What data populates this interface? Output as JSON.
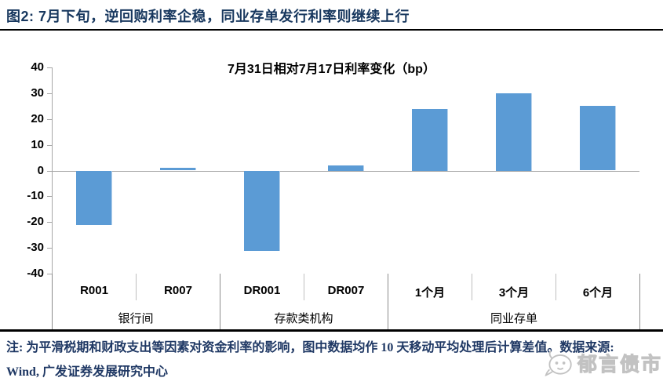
{
  "header": {
    "title": "图2: 7月下旬，逆回购利率企稳，同业存单发行利率则继续上行"
  },
  "chart_data": {
    "type": "bar",
    "title": "7月31日相对7月17日利率变化（bp）",
    "categories": [
      "R001",
      "R007",
      "DR001",
      "DR007",
      "1个月",
      "3个月",
      "6个月"
    ],
    "values": [
      -21,
      1,
      -31,
      2,
      24,
      30,
      25
    ],
    "groups": [
      {
        "label": "银行间",
        "start": 0,
        "end": 1
      },
      {
        "label": "存款类机构",
        "start": 2,
        "end": 3
      },
      {
        "label": "同业存单",
        "start": 4,
        "end": 6
      }
    ],
    "xlabel": "",
    "ylabel": "",
    "ylim": [
      -40,
      40
    ],
    "ytick_step": 10,
    "grid": false,
    "legend": false,
    "bar_color": "#5B9BD5"
  },
  "footnote": {
    "text": "注: 为平滑税期和财政支出等因素对资金利率的影响，图中数据均作 10 天移动平均处理后计算差值。数据来源: Wind, 广发证券发展研究中心"
  },
  "watermark": {
    "text": "郁言债市",
    "icon": "face-icon"
  },
  "colors": {
    "header_navy": "#17375E",
    "note_navy": "#1F3864",
    "bar_blue": "#5B9BD5",
    "axis_gray": "#A6A6A6",
    "separator_light": "#BFBFBF",
    "separator_dark": "#8C8C8C",
    "watermark_gray": "#C2C2C2"
  }
}
